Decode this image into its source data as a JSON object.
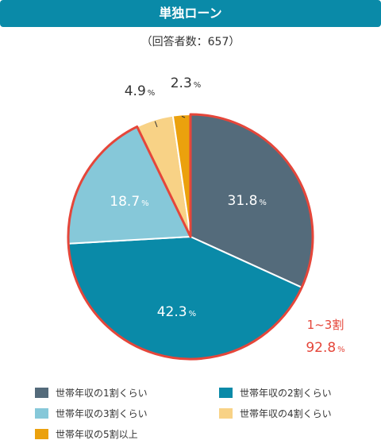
{
  "header": {
    "title": "単独ローン",
    "subtitle": "（回答者数：657）"
  },
  "chart_data": {
    "type": "pie",
    "title": "単独ローン",
    "subtitle": "（回答者数：657）",
    "start": "12 o'clock",
    "direction": "clockwise",
    "slices": [
      {
        "label": "世帯年収の1割くらい",
        "value": 31.8,
        "color": "#546b7b",
        "display": "31.8",
        "unit": "%"
      },
      {
        "label": "世帯年収の2割くらい",
        "value": 42.3,
        "color": "#0a8aa8",
        "display": "42.3",
        "unit": "%"
      },
      {
        "label": "世帯年収の3割くらい",
        "value": 18.7,
        "color": "#86c8d9",
        "display": "18.7",
        "unit": "%"
      },
      {
        "label": "世帯年収の4割くらい",
        "value": 4.9,
        "color": "#f8d286",
        "display": "4.9",
        "unit": "%"
      },
      {
        "label": "世帯年収の5割以上",
        "value": 2.3,
        "color": "#eba10d",
        "display": "2.3",
        "unit": "%"
      }
    ],
    "highlight": {
      "label": "1~3割",
      "value": "92.8",
      "unit": "%",
      "color": "#e5463a",
      "covers": [
        "世帯年収の1割くらい",
        "世帯年収の2割くらい",
        "世帯年収の3割くらい"
      ]
    },
    "legend_position": "bottom"
  }
}
